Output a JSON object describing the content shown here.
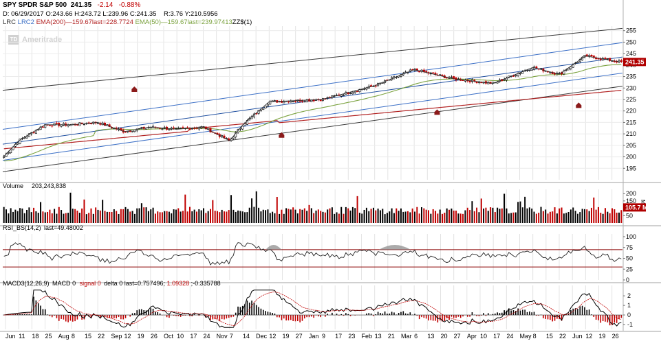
{
  "header": {
    "symbol_line": {
      "symbol": "SPY SPDR S&P 500",
      "last": "241.35",
      "change": "-2.14",
      "change_pct": "-0.88%"
    },
    "ohlc_line": {
      "date": "D: 06/29/2017",
      "open": "O:243.66",
      "high": "H:243.72",
      "low": "L:239.96",
      "close": "C:241.35",
      "r": "R:3.76",
      "y": "Y:210.5956"
    },
    "studies_line": {
      "lrc": "LRC",
      "lrc2": "LRC2",
      "ema200": "EMA(200)",
      "ema200_vals": "—159.67last=228.7724",
      "ema50": "EMA(50)",
      "ema50_vals": "—159.67last=239.97413",
      "zz": "ZZ$(1)"
    },
    "watermark": "Ameritrade"
  },
  "chart_data": [
    {
      "type": "candlestick",
      "title": "SPY SPDR S&P 500",
      "price_axis_ticks": [
        "255",
        "250",
        "245",
        "240",
        "235",
        "230",
        "225",
        "220",
        "215",
        "210",
        "205",
        "200",
        "195"
      ],
      "ylim": [
        190,
        257
      ],
      "last_price_label": "241.35",
      "x_tick_labels": [
        "Jun",
        "11",
        "18",
        "25",
        "Aug",
        "8",
        "15",
        "22",
        "Sep",
        "12",
        "19",
        "26",
        "Oct",
        "10",
        "17",
        "24",
        "Nov",
        "7",
        "14",
        "Dec",
        "12",
        "19",
        "27",
        "Jan",
        "9",
        "17",
        "23",
        "Feb",
        "13",
        "21",
        "Mar",
        "6",
        "13",
        "20",
        "27",
        "Apr",
        "10",
        "17",
        "24",
        "May",
        "8",
        "15",
        "22",
        "Jun",
        "12",
        "19",
        "26"
      ],
      "close_keypoints": [
        {
          "x": "Jun 1",
          "y": 200
        },
        {
          "x": "Jun 11",
          "y": 207
        },
        {
          "x": "Jun 25",
          "y": 214
        },
        {
          "x": "Aug 8",
          "y": 214
        },
        {
          "x": "Aug 22",
          "y": 215
        },
        {
          "x": "Sep 12",
          "y": 211
        },
        {
          "x": "Sep 26",
          "y": 213
        },
        {
          "x": "Oct 10",
          "y": 212
        },
        {
          "x": "Oct 24",
          "y": 213
        },
        {
          "x": "Nov 7",
          "y": 207
        },
        {
          "x": "Nov 14",
          "y": 214
        },
        {
          "x": "Dec 12",
          "y": 224
        },
        {
          "x": "Jan 9",
          "y": 225
        },
        {
          "x": "Feb 13",
          "y": 231
        },
        {
          "x": "Mar 6",
          "y": 238
        },
        {
          "x": "Mar 27",
          "y": 234
        },
        {
          "x": "Apr 17",
          "y": 232
        },
        {
          "x": "May 8",
          "y": 239
        },
        {
          "x": "May 22",
          "y": 236
        },
        {
          "x": "Jun 12",
          "y": 244
        },
        {
          "x": "Jun 26",
          "y": 241.35
        }
      ],
      "legend": [
        "LRC",
        "LRC2",
        "EMA(200)",
        "EMA(50)",
        "ZZ$(1)"
      ]
    },
    {
      "type": "bar",
      "title": "Volume",
      "value_label": "203,243,838",
      "axis_ticks": [
        "200",
        "150",
        "100",
        "50"
      ],
      "axis_unit": "Mil",
      "last_label": "105.7 M",
      "ylim": [
        0,
        210
      ]
    },
    {
      "type": "line",
      "title": "RSI_BS(14,2)",
      "value_label": "last=49.48002",
      "axis_ticks": [
        "100",
        "75",
        "50",
        "25",
        "0"
      ],
      "overbought": 70,
      "oversold": 30,
      "ylim": [
        0,
        100
      ]
    },
    {
      "type": "line",
      "title": "MACD3(12,26,9)",
      "series_labels": [
        "MACD",
        "0",
        "signal",
        "0",
        "delta",
        "0"
      ],
      "value_label": "last=0.757496;",
      "signal_last": "1.09328",
      "delta_last": ";-0.335788",
      "axis_ticks": [
        "2",
        "1",
        "0",
        "-1"
      ],
      "ylim": [
        -1.5,
        2.8
      ]
    }
  ],
  "colors": {
    "up": "#000000",
    "down": "#c00000",
    "ema200": "#b22222",
    "ema50": "#7ba23f",
    "lrc_outer": "#3a3a3a",
    "lrc_inner": "#3b6fc6",
    "last_box": "#b00000",
    "ref_line": "#8b0000"
  }
}
